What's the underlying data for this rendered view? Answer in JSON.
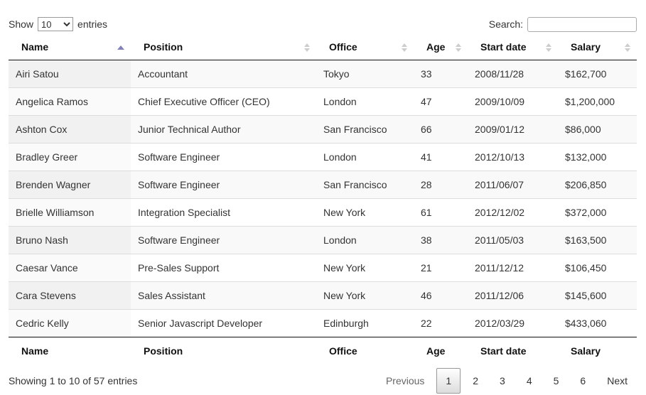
{
  "controls": {
    "show_label": "Show",
    "entries_label": "entries",
    "selected_page_length": "10",
    "search_label": "Search:",
    "search_value": ""
  },
  "table": {
    "columns": [
      {
        "label": "Name",
        "sort": "asc"
      },
      {
        "label": "Position",
        "sort": "none"
      },
      {
        "label": "Office",
        "sort": "none"
      },
      {
        "label": "Age",
        "sort": "none"
      },
      {
        "label": "Start date",
        "sort": "none"
      },
      {
        "label": "Salary",
        "sort": "none"
      }
    ],
    "rows": [
      [
        "Airi Satou",
        "Accountant",
        "Tokyo",
        "33",
        "2008/11/28",
        "$162,700"
      ],
      [
        "Angelica Ramos",
        "Chief Executive Officer (CEO)",
        "London",
        "47",
        "2009/10/09",
        "$1,200,000"
      ],
      [
        "Ashton Cox",
        "Junior Technical Author",
        "San Francisco",
        "66",
        "2009/01/12",
        "$86,000"
      ],
      [
        "Bradley Greer",
        "Software Engineer",
        "London",
        "41",
        "2012/10/13",
        "$132,000"
      ],
      [
        "Brenden Wagner",
        "Software Engineer",
        "San Francisco",
        "28",
        "2011/06/07",
        "$206,850"
      ],
      [
        "Brielle Williamson",
        "Integration Specialist",
        "New York",
        "61",
        "2012/12/02",
        "$372,000"
      ],
      [
        "Bruno Nash",
        "Software Engineer",
        "London",
        "38",
        "2011/05/03",
        "$163,500"
      ],
      [
        "Caesar Vance",
        "Pre-Sales Support",
        "New York",
        "21",
        "2011/12/12",
        "$106,450"
      ],
      [
        "Cara Stevens",
        "Sales Assistant",
        "New York",
        "46",
        "2011/12/06",
        "$145,600"
      ],
      [
        "Cedric Kelly",
        "Senior Javascript Developer",
        "Edinburgh",
        "22",
        "2012/03/29",
        "$433,060"
      ]
    ]
  },
  "footer": {
    "columns": [
      "Name",
      "Position",
      "Office",
      "Age",
      "Start date",
      "Salary"
    ]
  },
  "status": {
    "info": "Showing 1 to 10 of 57 entries"
  },
  "pagination": {
    "previous_label": "Previous",
    "next_label": "Next",
    "pages": [
      "1",
      "2",
      "3",
      "4",
      "5",
      "6"
    ],
    "active_page": "1"
  },
  "colors": {
    "sorted_asc_arrow": "#8383bb",
    "unsorted_arrow": "#cdcdcd",
    "stripe_odd": "#f9f9f9",
    "stripe_even": "#ffffff",
    "sorted_column_odd": "#f1f1f1",
    "sorted_column_even": "#fafafa",
    "header_border": "#111111",
    "row_border": "#dddddd",
    "active_page_border": "#979797"
  }
}
